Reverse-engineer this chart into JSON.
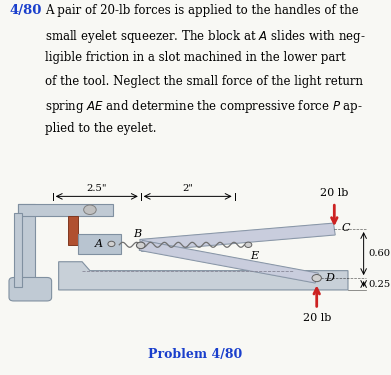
{
  "title_number": "4/80",
  "title_color": "#1a3fcc",
  "bg_color": "#f8f8f4",
  "problem_label": "Problem 4/80",
  "problem_label_color": "#1a3fcc",
  "force_label": "20 lb",
  "force_arrow_color": "#cc2222",
  "dim_25": "2.5\"",
  "dim_2": "2\"",
  "dim_060": "0.60\"",
  "dim_025": "0.25\"",
  "label_A": "A",
  "label_B": "B",
  "label_C": "C",
  "label_D": "D",
  "label_E": "E",
  "clamp_body_color": "#c0cad4",
  "clamp_edge_color": "#8090a0",
  "handle_face_color": "#c8d0dc",
  "handle_edge_color": "#8090a0",
  "handle_tint_color": "#ccc8e0",
  "pad_face_color": "#b05030",
  "pad_edge_color": "#803820",
  "spring_color": "#707070",
  "pin_face_color": "#d0d0d0",
  "pin_edge_color": "#606060",
  "lower_jaw_face": "#c8d0d8",
  "lower_jaw_edge": "#8090a0",
  "text_lines": [
    "A pair of 20-lb forces is applied to the handles of the",
    "small eyelet squeezer. The block at $A$ slides with neg-",
    "ligible friction in a slot machined in the lower part",
    "of the tool. Neglect the small force of the light return",
    "spring $AE$ and determine the compressive force $P$ ap-",
    "plied to the eyelet."
  ],
  "text_fontsize": 8.5,
  "text_indent": 0.115,
  "title_fontsize": 9.5
}
